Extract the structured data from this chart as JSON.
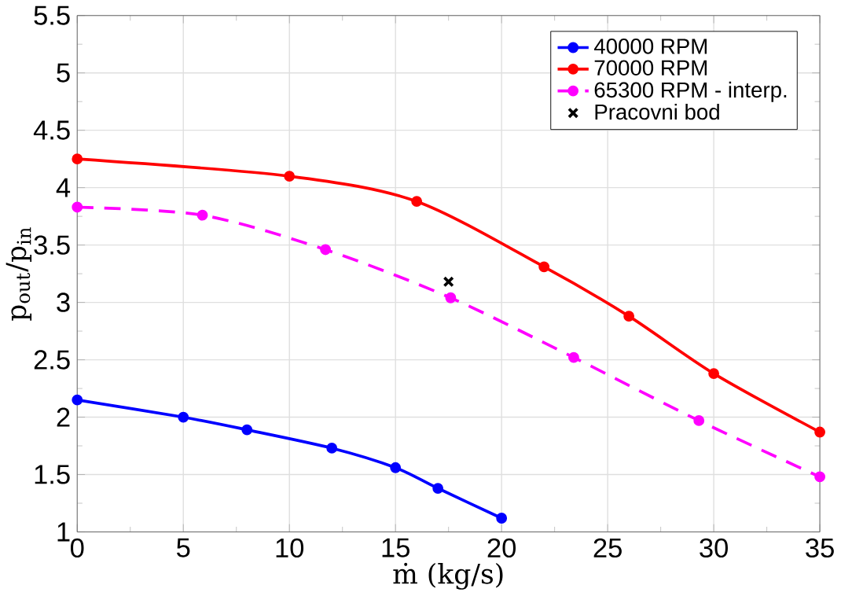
{
  "chart_data": {
    "type": "line",
    "xlabel": "ṁ (kg/s)",
    "ylabel": "p$_{out}$/p$_{in}$",
    "xlim": [
      0,
      35
    ],
    "xticks": [
      0,
      5,
      10,
      15,
      20,
      25,
      30,
      35
    ],
    "ylim": [
      1,
      5.5
    ],
    "yticks": [
      1,
      1.5,
      2,
      2.5,
      3,
      3.5,
      4,
      4.5,
      5,
      5.5
    ],
    "grid": true,
    "legend": "top right",
    "marker": "circle",
    "series": [
      {
        "name": "40000 RPM",
        "color": "#0000ff",
        "x": [
          0,
          5,
          8,
          12,
          15,
          17,
          20
        ],
        "values": [
          2.15,
          2.0,
          1.89,
          1.73,
          1.56,
          1.38,
          1.12
        ]
      },
      {
        "name": "70000 RPM",
        "color": "#ff0000",
        "x": [
          0,
          10,
          16,
          22,
          26,
          30,
          35
        ],
        "values": [
          4.25,
          4.1,
          3.88,
          3.31,
          2.88,
          2.38,
          1.87
        ]
      },
      {
        "name": "65300 RPM - interp.",
        "color": "#ff00ff",
        "line_style": "dashed",
        "x": [
          0,
          5.9,
          11.7,
          17.6,
          23.4,
          29.3,
          35
        ],
        "values": [
          3.83,
          3.76,
          3.46,
          3.04,
          2.52,
          1.97,
          1.48
        ]
      },
      {
        "name": "Pracovni bod",
        "type": "scatter",
        "marker": "cross",
        "color": "#000000",
        "x": [
          17.5
        ],
        "values": [
          3.18
        ]
      }
    ]
  }
}
